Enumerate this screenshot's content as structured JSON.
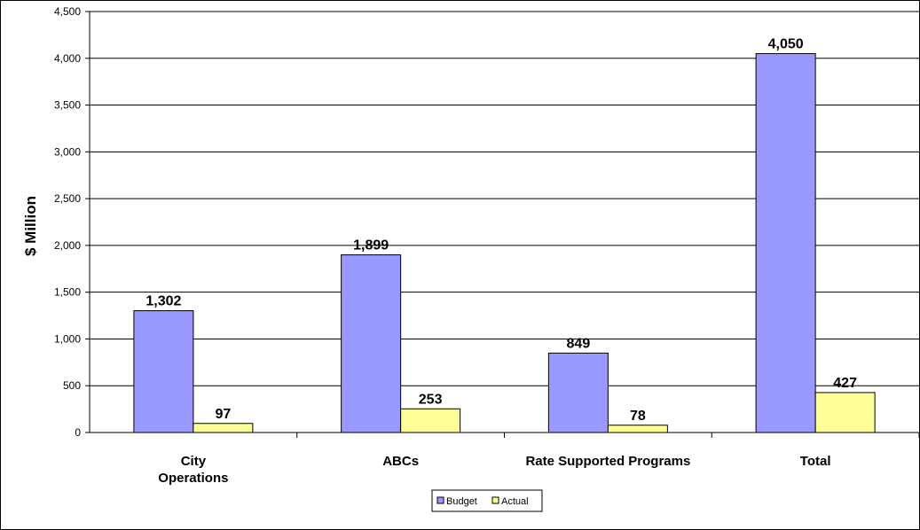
{
  "chart_data": {
    "type": "bar",
    "title": "",
    "xlabel": "",
    "ylabel": "$ Million",
    "ylim": [
      0,
      4500
    ],
    "ytick_step": 500,
    "yticks": [
      "0",
      "500",
      "1,000",
      "1,500",
      "2,000",
      "2,500",
      "3,000",
      "3,500",
      "4,000",
      "4,500"
    ],
    "grid": true,
    "legend_position": "bottom",
    "categories": [
      [
        "City",
        "Operations"
      ],
      [
        "ABCs"
      ],
      [
        "Rate Supported Programs"
      ],
      [
        "Total"
      ]
    ],
    "series": [
      {
        "name": "Budget",
        "color": "#9999ff",
        "values": [
          1302,
          1899,
          849,
          4050
        ],
        "labels": [
          "1,302",
          "1,899",
          "849",
          "4,050"
        ]
      },
      {
        "name": "Actual",
        "color": "#ffff99",
        "values": [
          97,
          253,
          78,
          427
        ],
        "labels": [
          "97",
          "253",
          "78",
          "427"
        ]
      }
    ]
  }
}
